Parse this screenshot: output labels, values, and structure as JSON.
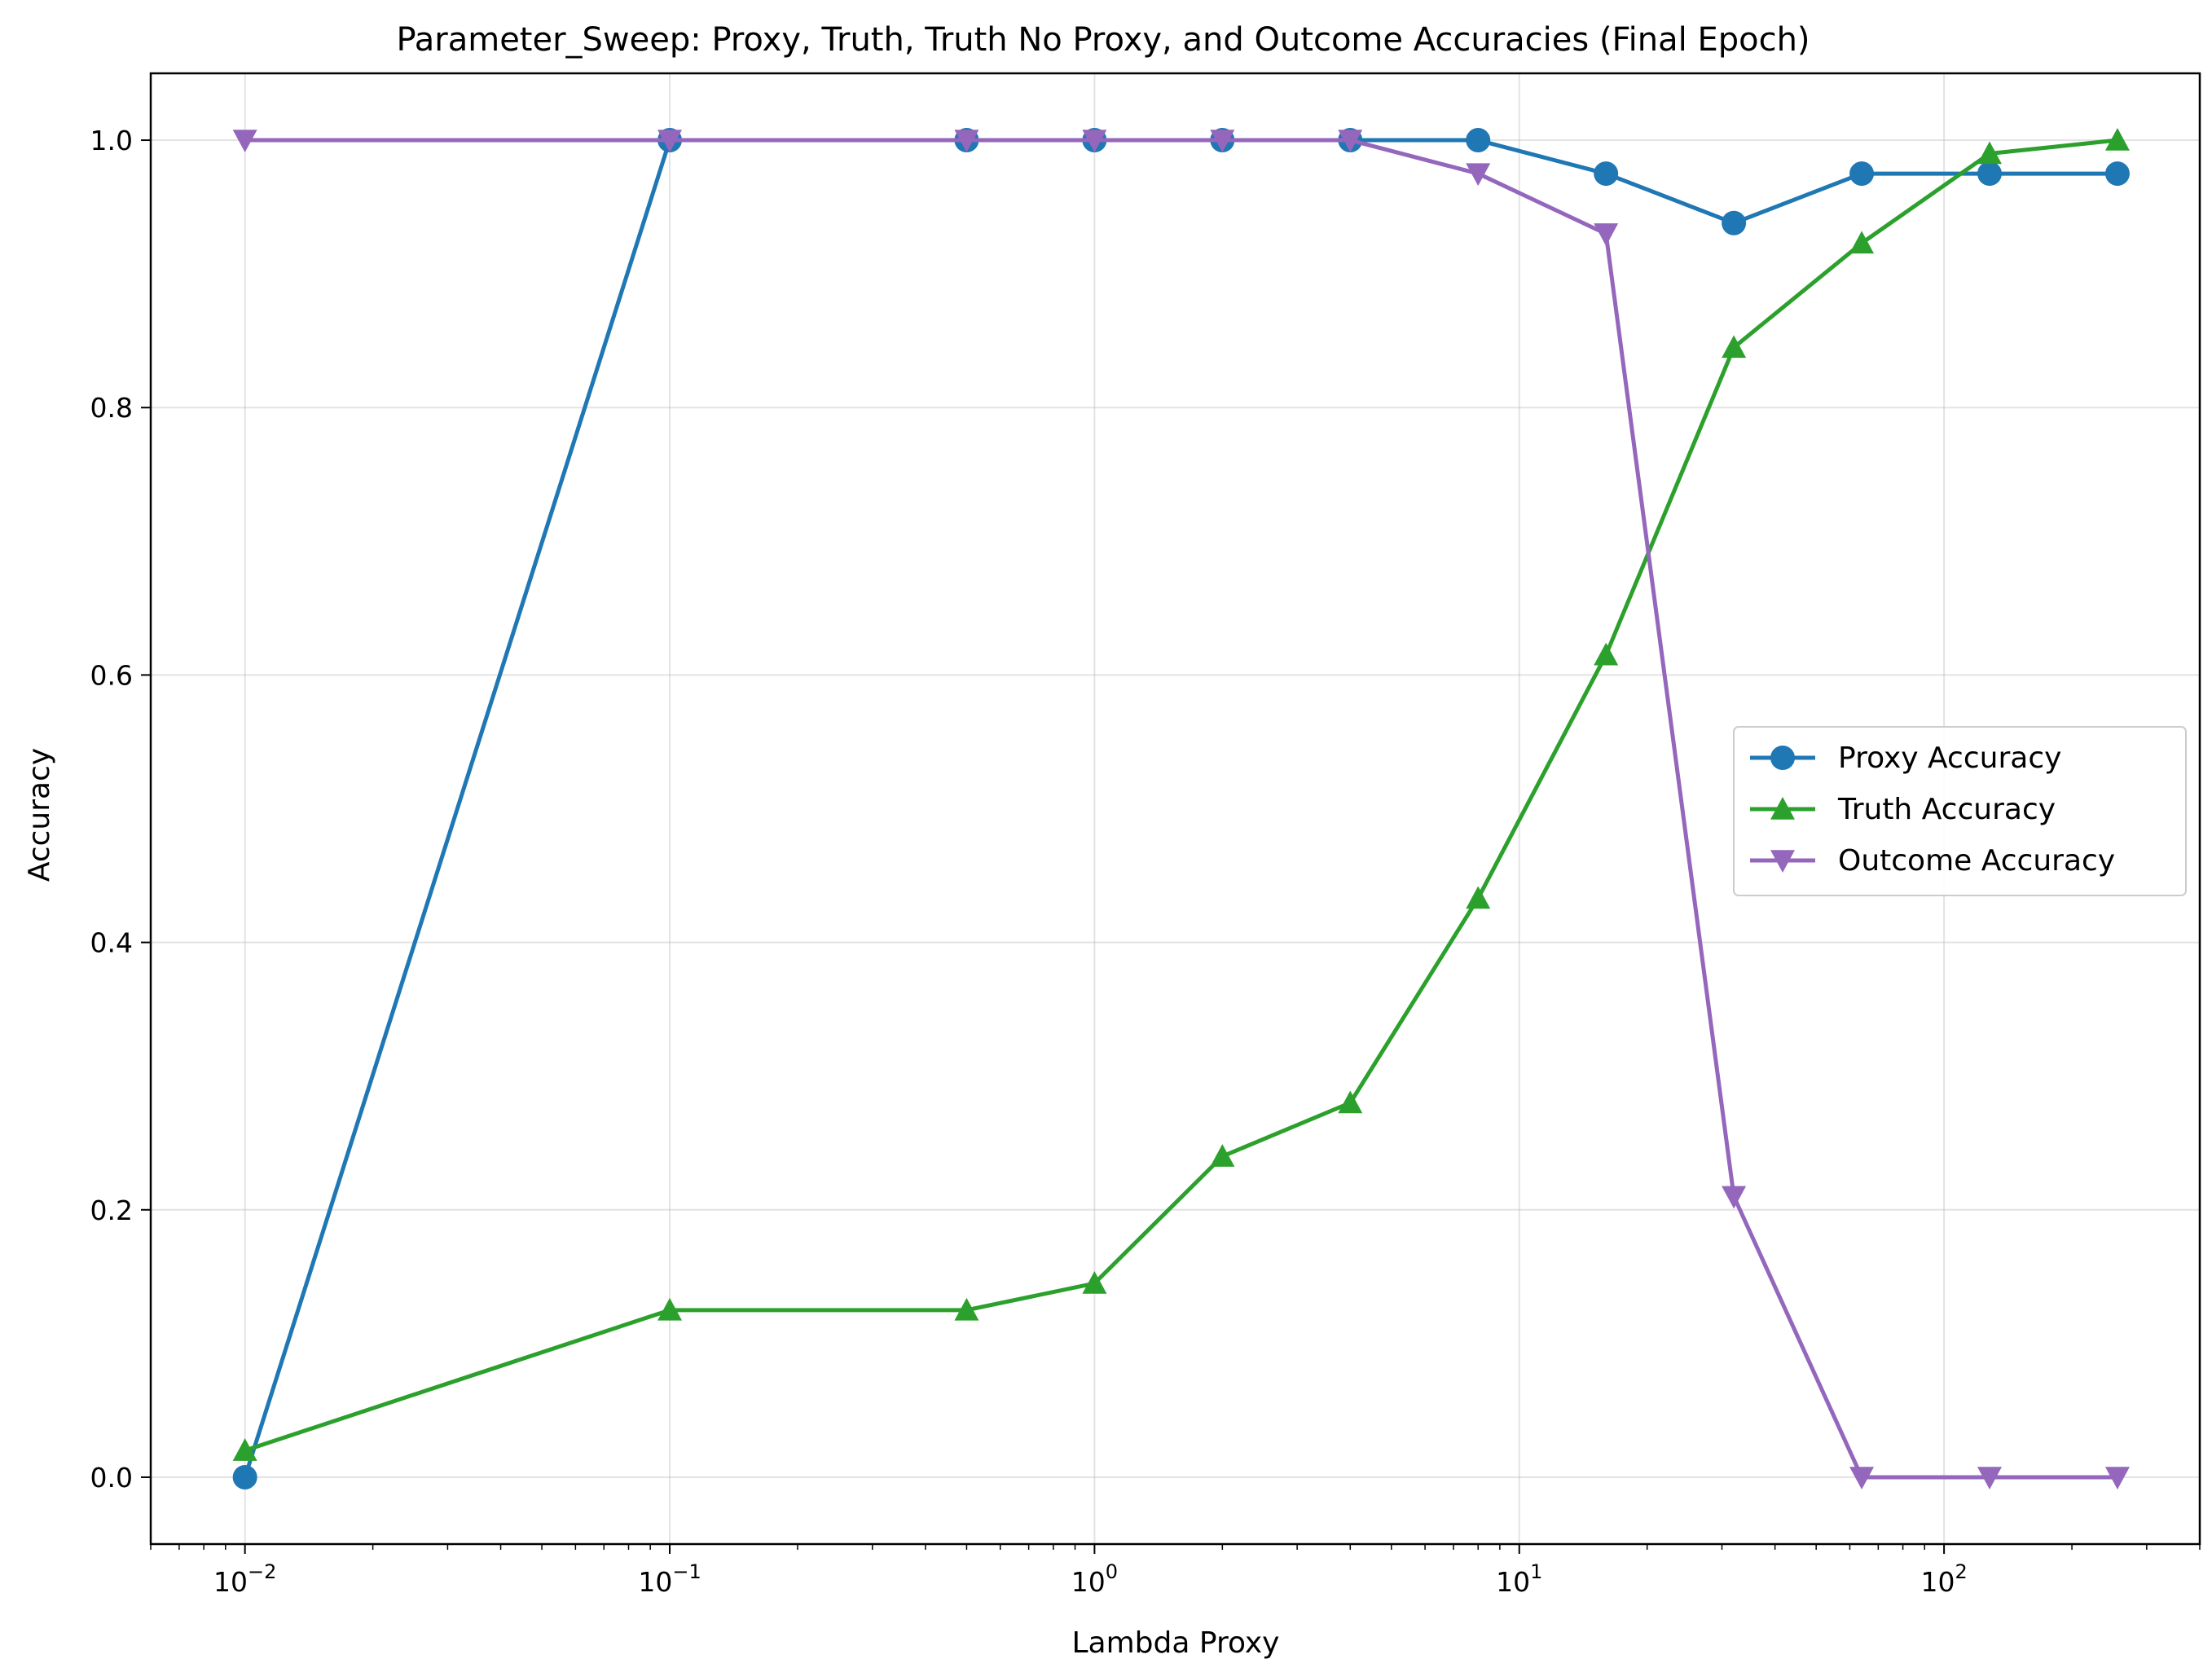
{
  "chart_data": {
    "type": "line",
    "title": "Parameter_Sweep: Proxy, Truth, Truth No Proxy, and Outcome Accuracies (Final Epoch)",
    "xlabel": "Lambda Proxy",
    "ylabel": "Accuracy",
    "xscale": "log",
    "xlim": [
      0.006,
      400
    ],
    "ylim": [
      -0.05,
      1.05
    ],
    "x_ticks": [
      {
        "value": 0.01,
        "base": "10",
        "exp": "−2"
      },
      {
        "value": 0.1,
        "base": "10",
        "exp": "−1"
      },
      {
        "value": 1,
        "base": "10",
        "exp": "0"
      },
      {
        "value": 10,
        "base": "10",
        "exp": "1"
      },
      {
        "value": 100,
        "base": "10",
        "exp": "2"
      }
    ],
    "y_ticks": [
      {
        "value": 0.0,
        "label": "0.0"
      },
      {
        "value": 0.2,
        "label": "0.2"
      },
      {
        "value": 0.4,
        "label": "0.4"
      },
      {
        "value": 0.6,
        "label": "0.6"
      },
      {
        "value": 0.8,
        "label": "0.8"
      },
      {
        "value": 1.0,
        "label": "1.0"
      }
    ],
    "grid": true,
    "legend_position": "center-right",
    "x": [
      0.01,
      0.1,
      0.5,
      1,
      2,
      4,
      8,
      16,
      32,
      64,
      128,
      256
    ],
    "series": [
      {
        "name": "Proxy Accuracy",
        "color": "#1f77b4",
        "marker": "circle",
        "values": [
          0.0,
          1.0,
          1.0,
          1.0,
          1.0,
          1.0,
          1.0,
          0.975,
          0.938,
          0.975,
          0.975,
          0.975
        ]
      },
      {
        "name": "Truth Accuracy",
        "color": "#2ca02c",
        "marker": "triangle-up",
        "values": [
          0.02,
          0.125,
          0.125,
          0.145,
          0.24,
          0.28,
          0.433,
          0.615,
          0.845,
          0.923,
          0.99,
          1.0
        ]
      },
      {
        "name": "Outcome Accuracy",
        "color": "#9467bd",
        "marker": "triangle-down",
        "values": [
          1.0,
          1.0,
          1.0,
          1.0,
          1.0,
          1.0,
          0.975,
          0.93,
          0.21,
          0.0,
          0.0,
          0.0
        ]
      }
    ]
  }
}
